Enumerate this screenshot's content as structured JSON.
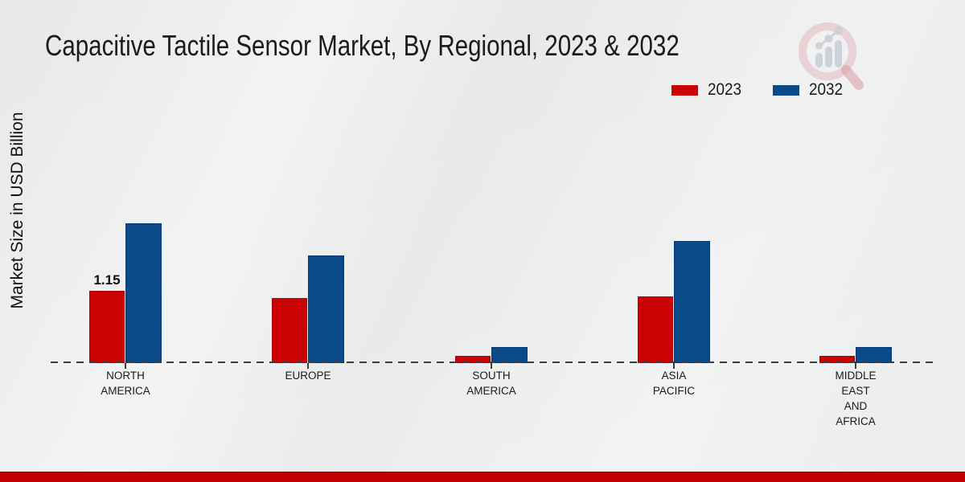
{
  "title": "Capacitive Tactile Sensor Market, By Regional, 2023 & 2032",
  "colors": {
    "series_2023": "#cb0304",
    "series_2032": "#0a4a88",
    "axis_line": "#3d3d3d",
    "text": "#1a1a1a",
    "footer_bar": "#c00000",
    "background": "#e9eaeb",
    "watermark_pink": "#d98b93",
    "watermark_gray": "#b4b8c0"
  },
  "watermark_icon": "magnifier-bar-chart-logo",
  "chart_data": {
    "type": "bar",
    "title": "Capacitive Tactile Sensor Market, By Regional, 2023 & 2032",
    "ylabel": "Market Size in USD Billion",
    "xlabel": "",
    "categories": [
      "NORTH AMERICA",
      "EUROPE",
      "SOUTH AMERICA",
      "ASIA PACIFIC",
      "MIDDLE EAST AND AFRICA"
    ],
    "category_label_lines": [
      [
        "NORTH",
        "AMERICA"
      ],
      [
        "EUROPE"
      ],
      [
        "SOUTH",
        "AMERICA"
      ],
      [
        "ASIA",
        "PACIFIC"
      ],
      [
        "MIDDLE",
        "EAST",
        "AND",
        "AFRICA"
      ]
    ],
    "series": [
      {
        "name": "2023",
        "color": "#cb0304",
        "values": [
          1.15,
          1.03,
          0.12,
          1.06,
          0.12
        ]
      },
      {
        "name": "2032",
        "color": "#0a4a88",
        "values": [
          2.22,
          1.71,
          0.26,
          1.94,
          0.26
        ]
      }
    ],
    "ylim": [
      0,
      2.5
    ],
    "grid": false,
    "legend_position": "top-right",
    "axis_style": "dashed-baseline-only",
    "data_labels": [
      {
        "category_index": 0,
        "series_index": 0,
        "text": "1.15"
      }
    ]
  }
}
